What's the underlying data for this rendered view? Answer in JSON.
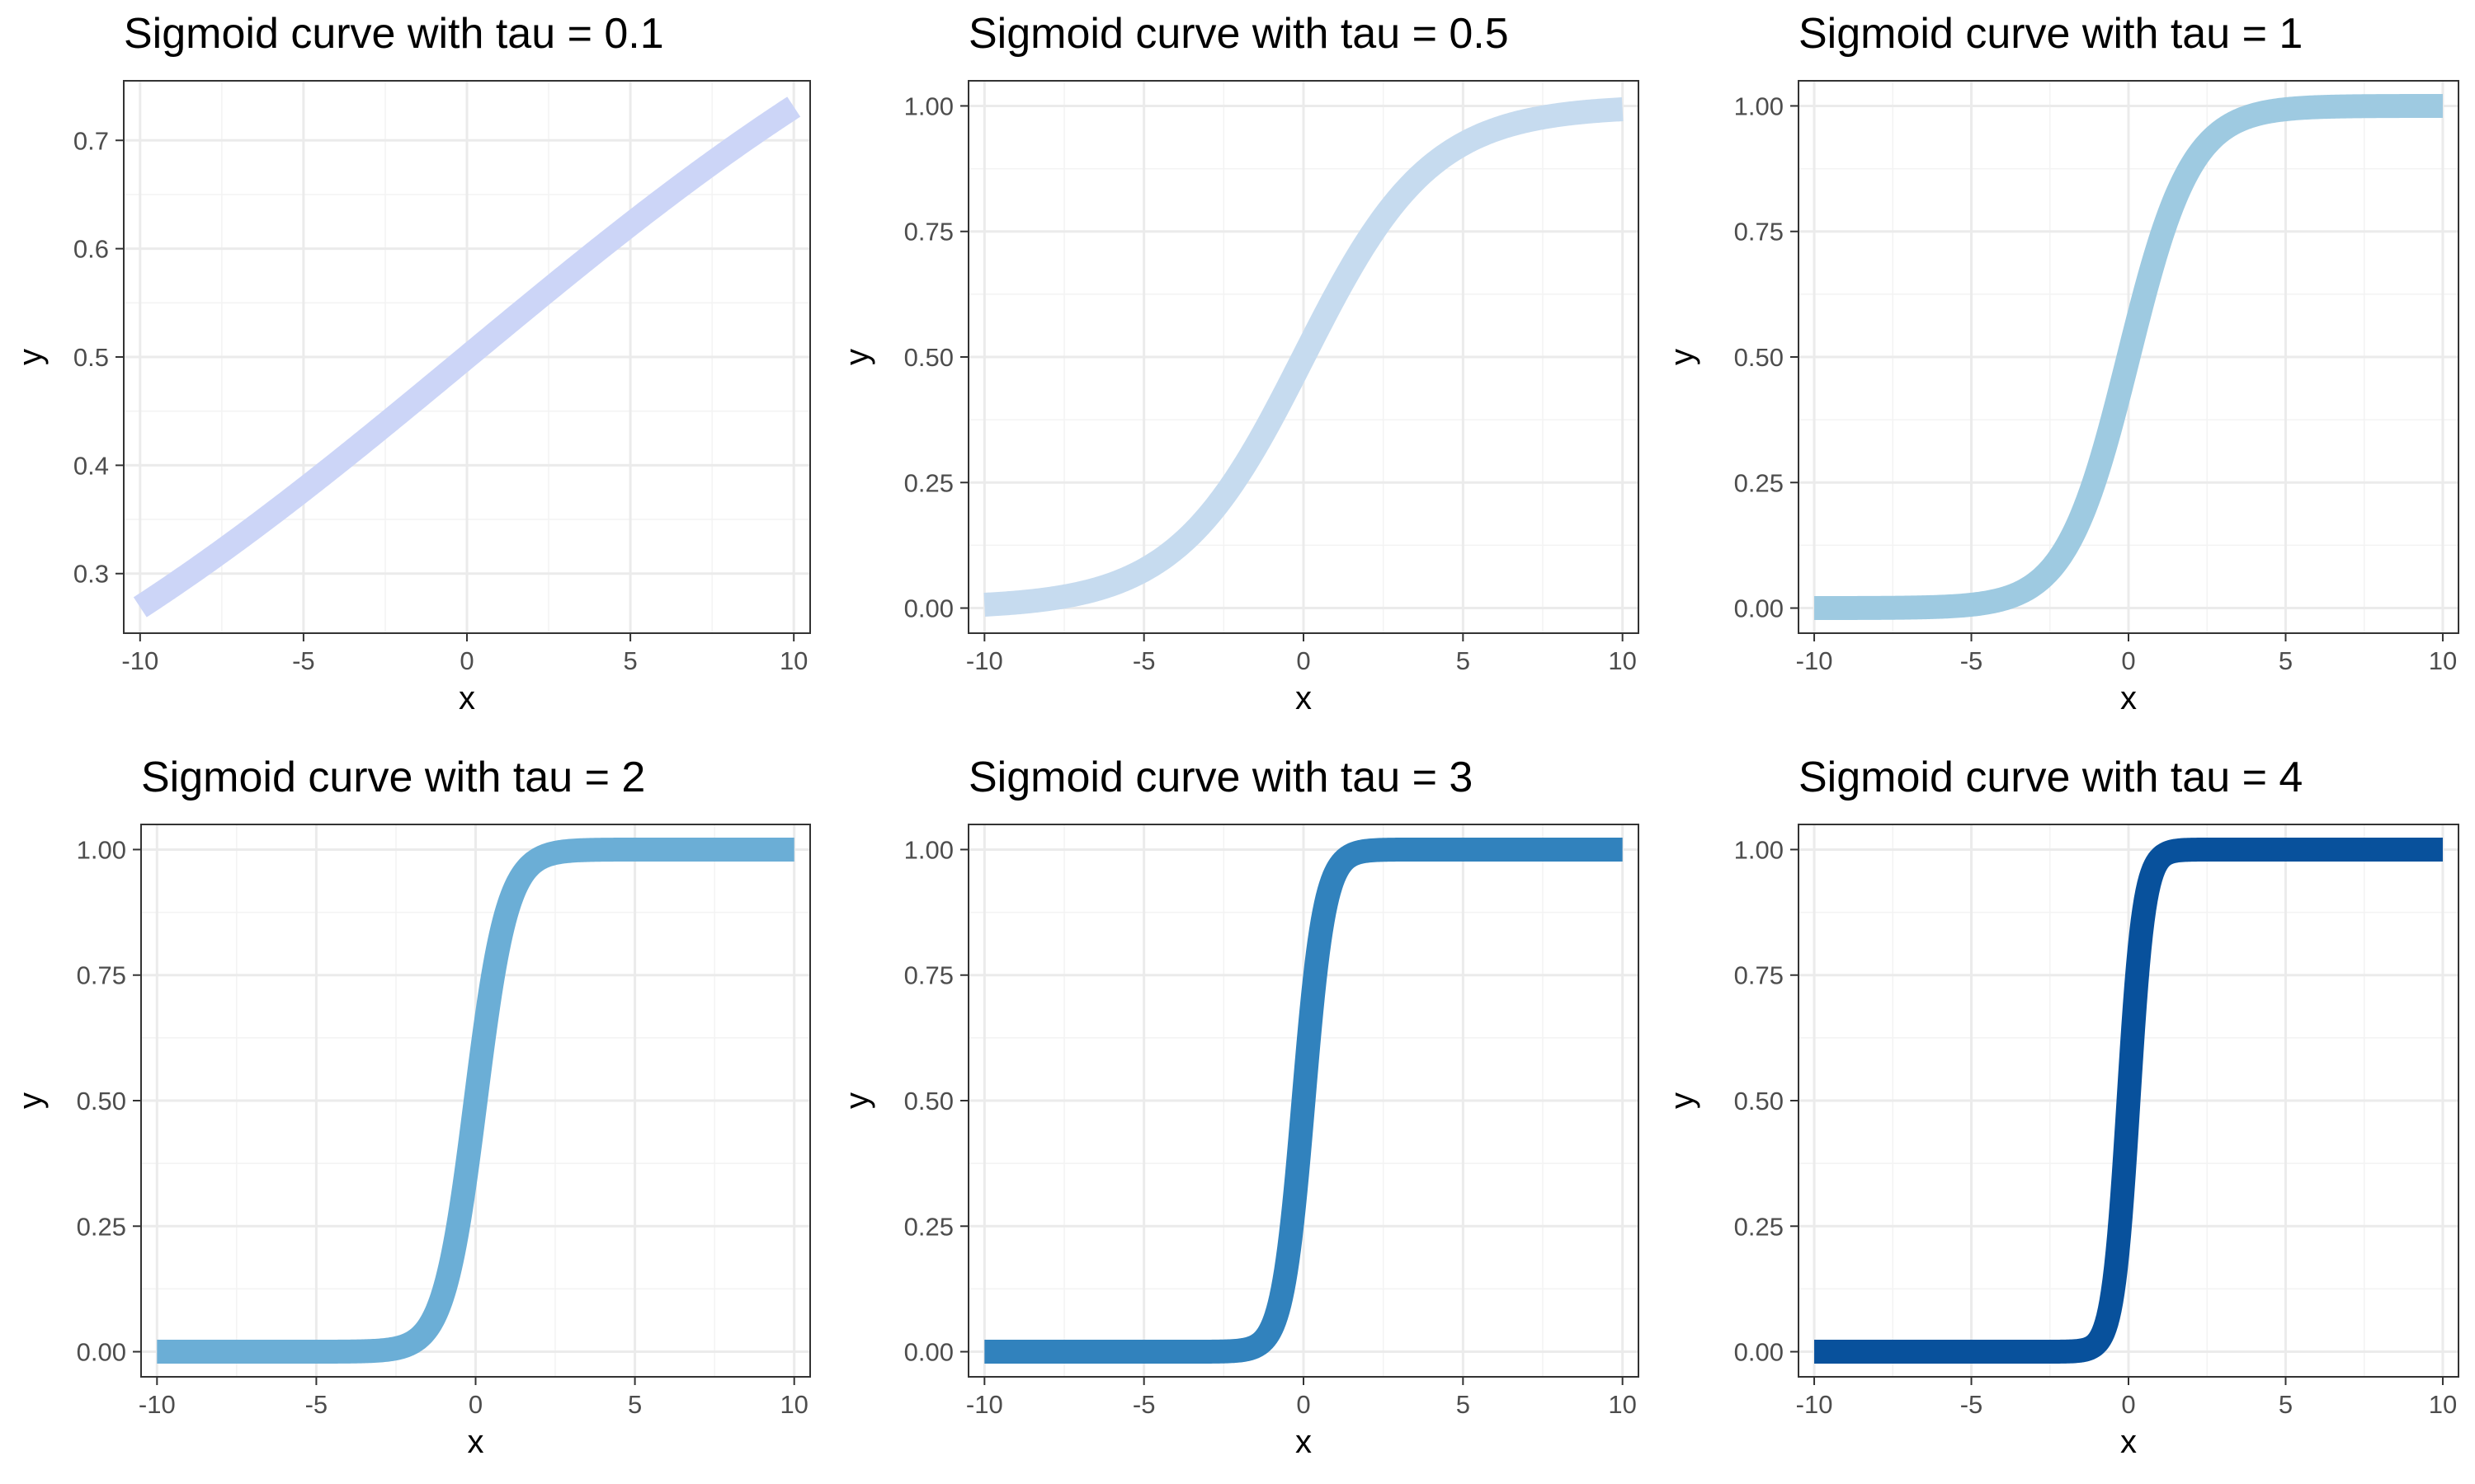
{
  "chart_data": [
    {
      "type": "line",
      "title": "Sigmoid curve with tau = 0.1",
      "tau": 0.1,
      "xlabel": "x",
      "ylabel": "y",
      "xlim": [
        -10.5,
        10.5
      ],
      "ylim": [
        0.245,
        0.755
      ],
      "x_ticks": [
        -10,
        -5,
        0,
        5,
        10
      ],
      "y_ticks": [
        0.3,
        0.4,
        0.5,
        0.6,
        0.7
      ],
      "y_tick_labels": [
        "0.3",
        "0.4",
        "0.5",
        "0.6",
        "0.7"
      ],
      "color": "#ccd5f7",
      "grid": true,
      "series": [
        {
          "x": [
            -10,
            -8,
            -6,
            -4,
            -2,
            0,
            2,
            4,
            6,
            8,
            10
          ],
          "y": [
            0.269,
            0.31,
            0.354,
            0.401,
            0.45,
            0.5,
            0.55,
            0.599,
            0.646,
            0.69,
            0.731
          ]
        }
      ]
    },
    {
      "type": "line",
      "title": "Sigmoid curve with tau = 0.5",
      "tau": 0.5,
      "xlabel": "x",
      "ylabel": "y",
      "xlim": [
        -10.5,
        10.5
      ],
      "ylim": [
        -0.05,
        1.05
      ],
      "x_ticks": [
        -10,
        -5,
        0,
        5,
        10
      ],
      "y_ticks": [
        0,
        0.25,
        0.5,
        0.75,
        1
      ],
      "y_tick_labels": [
        "0.00",
        "0.25",
        "0.50",
        "0.75",
        "1.00"
      ],
      "color": "#c6dbef",
      "grid": true,
      "series": [
        {
          "x": [
            -10,
            -8,
            -6,
            -4,
            -2,
            0,
            2,
            4,
            6,
            8,
            10
          ],
          "y": [
            0.007,
            0.018,
            0.047,
            0.119,
            0.269,
            0.5,
            0.731,
            0.881,
            0.953,
            0.982,
            0.993
          ]
        }
      ]
    },
    {
      "type": "line",
      "title": "Sigmoid curve with tau = 1",
      "tau": 1,
      "xlabel": "x",
      "ylabel": "y",
      "xlim": [
        -10.5,
        10.5
      ],
      "ylim": [
        -0.05,
        1.05
      ],
      "x_ticks": [
        -10,
        -5,
        0,
        5,
        10
      ],
      "y_ticks": [
        0,
        0.25,
        0.5,
        0.75,
        1
      ],
      "y_tick_labels": [
        "0.00",
        "0.25",
        "0.50",
        "0.75",
        "1.00"
      ],
      "color": "#9ecae1",
      "grid": true,
      "series": [
        {
          "x": [
            -10,
            -6,
            -4,
            -3,
            -2,
            -1,
            0,
            1,
            2,
            3,
            4,
            6,
            10
          ],
          "y": [
            0.0,
            0.002,
            0.018,
            0.047,
            0.119,
            0.269,
            0.5,
            0.731,
            0.881,
            0.953,
            0.982,
            0.998,
            1.0
          ]
        }
      ]
    },
    {
      "type": "line",
      "title": "Sigmoid curve with tau = 2",
      "tau": 2,
      "xlabel": "x",
      "ylabel": "y",
      "xlim": [
        -10.5,
        10.5
      ],
      "ylim": [
        -0.05,
        1.05
      ],
      "x_ticks": [
        -10,
        -5,
        0,
        5,
        10
      ],
      "y_ticks": [
        0,
        0.25,
        0.5,
        0.75,
        1
      ],
      "y_tick_labels": [
        "0.00",
        "0.25",
        "0.50",
        "0.75",
        "1.00"
      ],
      "color": "#6baed6",
      "grid": true,
      "series": [
        {
          "x": [
            -10,
            -3,
            -2,
            -1.5,
            -1,
            -0.5,
            0,
            0.5,
            1,
            1.5,
            2,
            3,
            10
          ],
          "y": [
            0.0,
            0.002,
            0.018,
            0.047,
            0.119,
            0.269,
            0.5,
            0.731,
            0.881,
            0.953,
            0.982,
            0.998,
            1.0
          ]
        }
      ]
    },
    {
      "type": "line",
      "title": "Sigmoid curve with tau = 3",
      "tau": 3,
      "xlabel": "x",
      "ylabel": "y",
      "xlim": [
        -10.5,
        10.5
      ],
      "ylim": [
        -0.05,
        1.05
      ],
      "x_ticks": [
        -10,
        -5,
        0,
        5,
        10
      ],
      "y_ticks": [
        0,
        0.25,
        0.5,
        0.75,
        1
      ],
      "y_tick_labels": [
        "0.00",
        "0.25",
        "0.50",
        "0.75",
        "1.00"
      ],
      "color": "#3182bd",
      "grid": true,
      "series": [
        {
          "x": [
            -10,
            -2,
            -1.33,
            -1,
            -0.67,
            -0.33,
            0,
            0.33,
            0.67,
            1,
            1.33,
            2,
            10
          ],
          "y": [
            0.0,
            0.002,
            0.018,
            0.047,
            0.119,
            0.269,
            0.5,
            0.731,
            0.881,
            0.953,
            0.982,
            0.998,
            1.0
          ]
        }
      ]
    },
    {
      "type": "line",
      "title": "Sigmoid curve with tau = 4",
      "tau": 4,
      "xlabel": "x",
      "ylabel": "y",
      "xlim": [
        -10.5,
        10.5
      ],
      "ylim": [
        -0.05,
        1.05
      ],
      "x_ticks": [
        -10,
        -5,
        0,
        5,
        10
      ],
      "y_ticks": [
        0,
        0.25,
        0.5,
        0.75,
        1
      ],
      "y_tick_labels": [
        "0.00",
        "0.25",
        "0.50",
        "0.75",
        "1.00"
      ],
      "color": "#08519c",
      "grid": true,
      "series": [
        {
          "x": [
            -10,
            -1.5,
            -1,
            -0.75,
            -0.5,
            -0.25,
            0,
            0.25,
            0.5,
            0.75,
            1,
            1.5,
            10
          ],
          "y": [
            0.0,
            0.002,
            0.018,
            0.047,
            0.119,
            0.269,
            0.5,
            0.731,
            0.881,
            0.953,
            0.982,
            0.998,
            1.0
          ]
        }
      ]
    }
  ]
}
